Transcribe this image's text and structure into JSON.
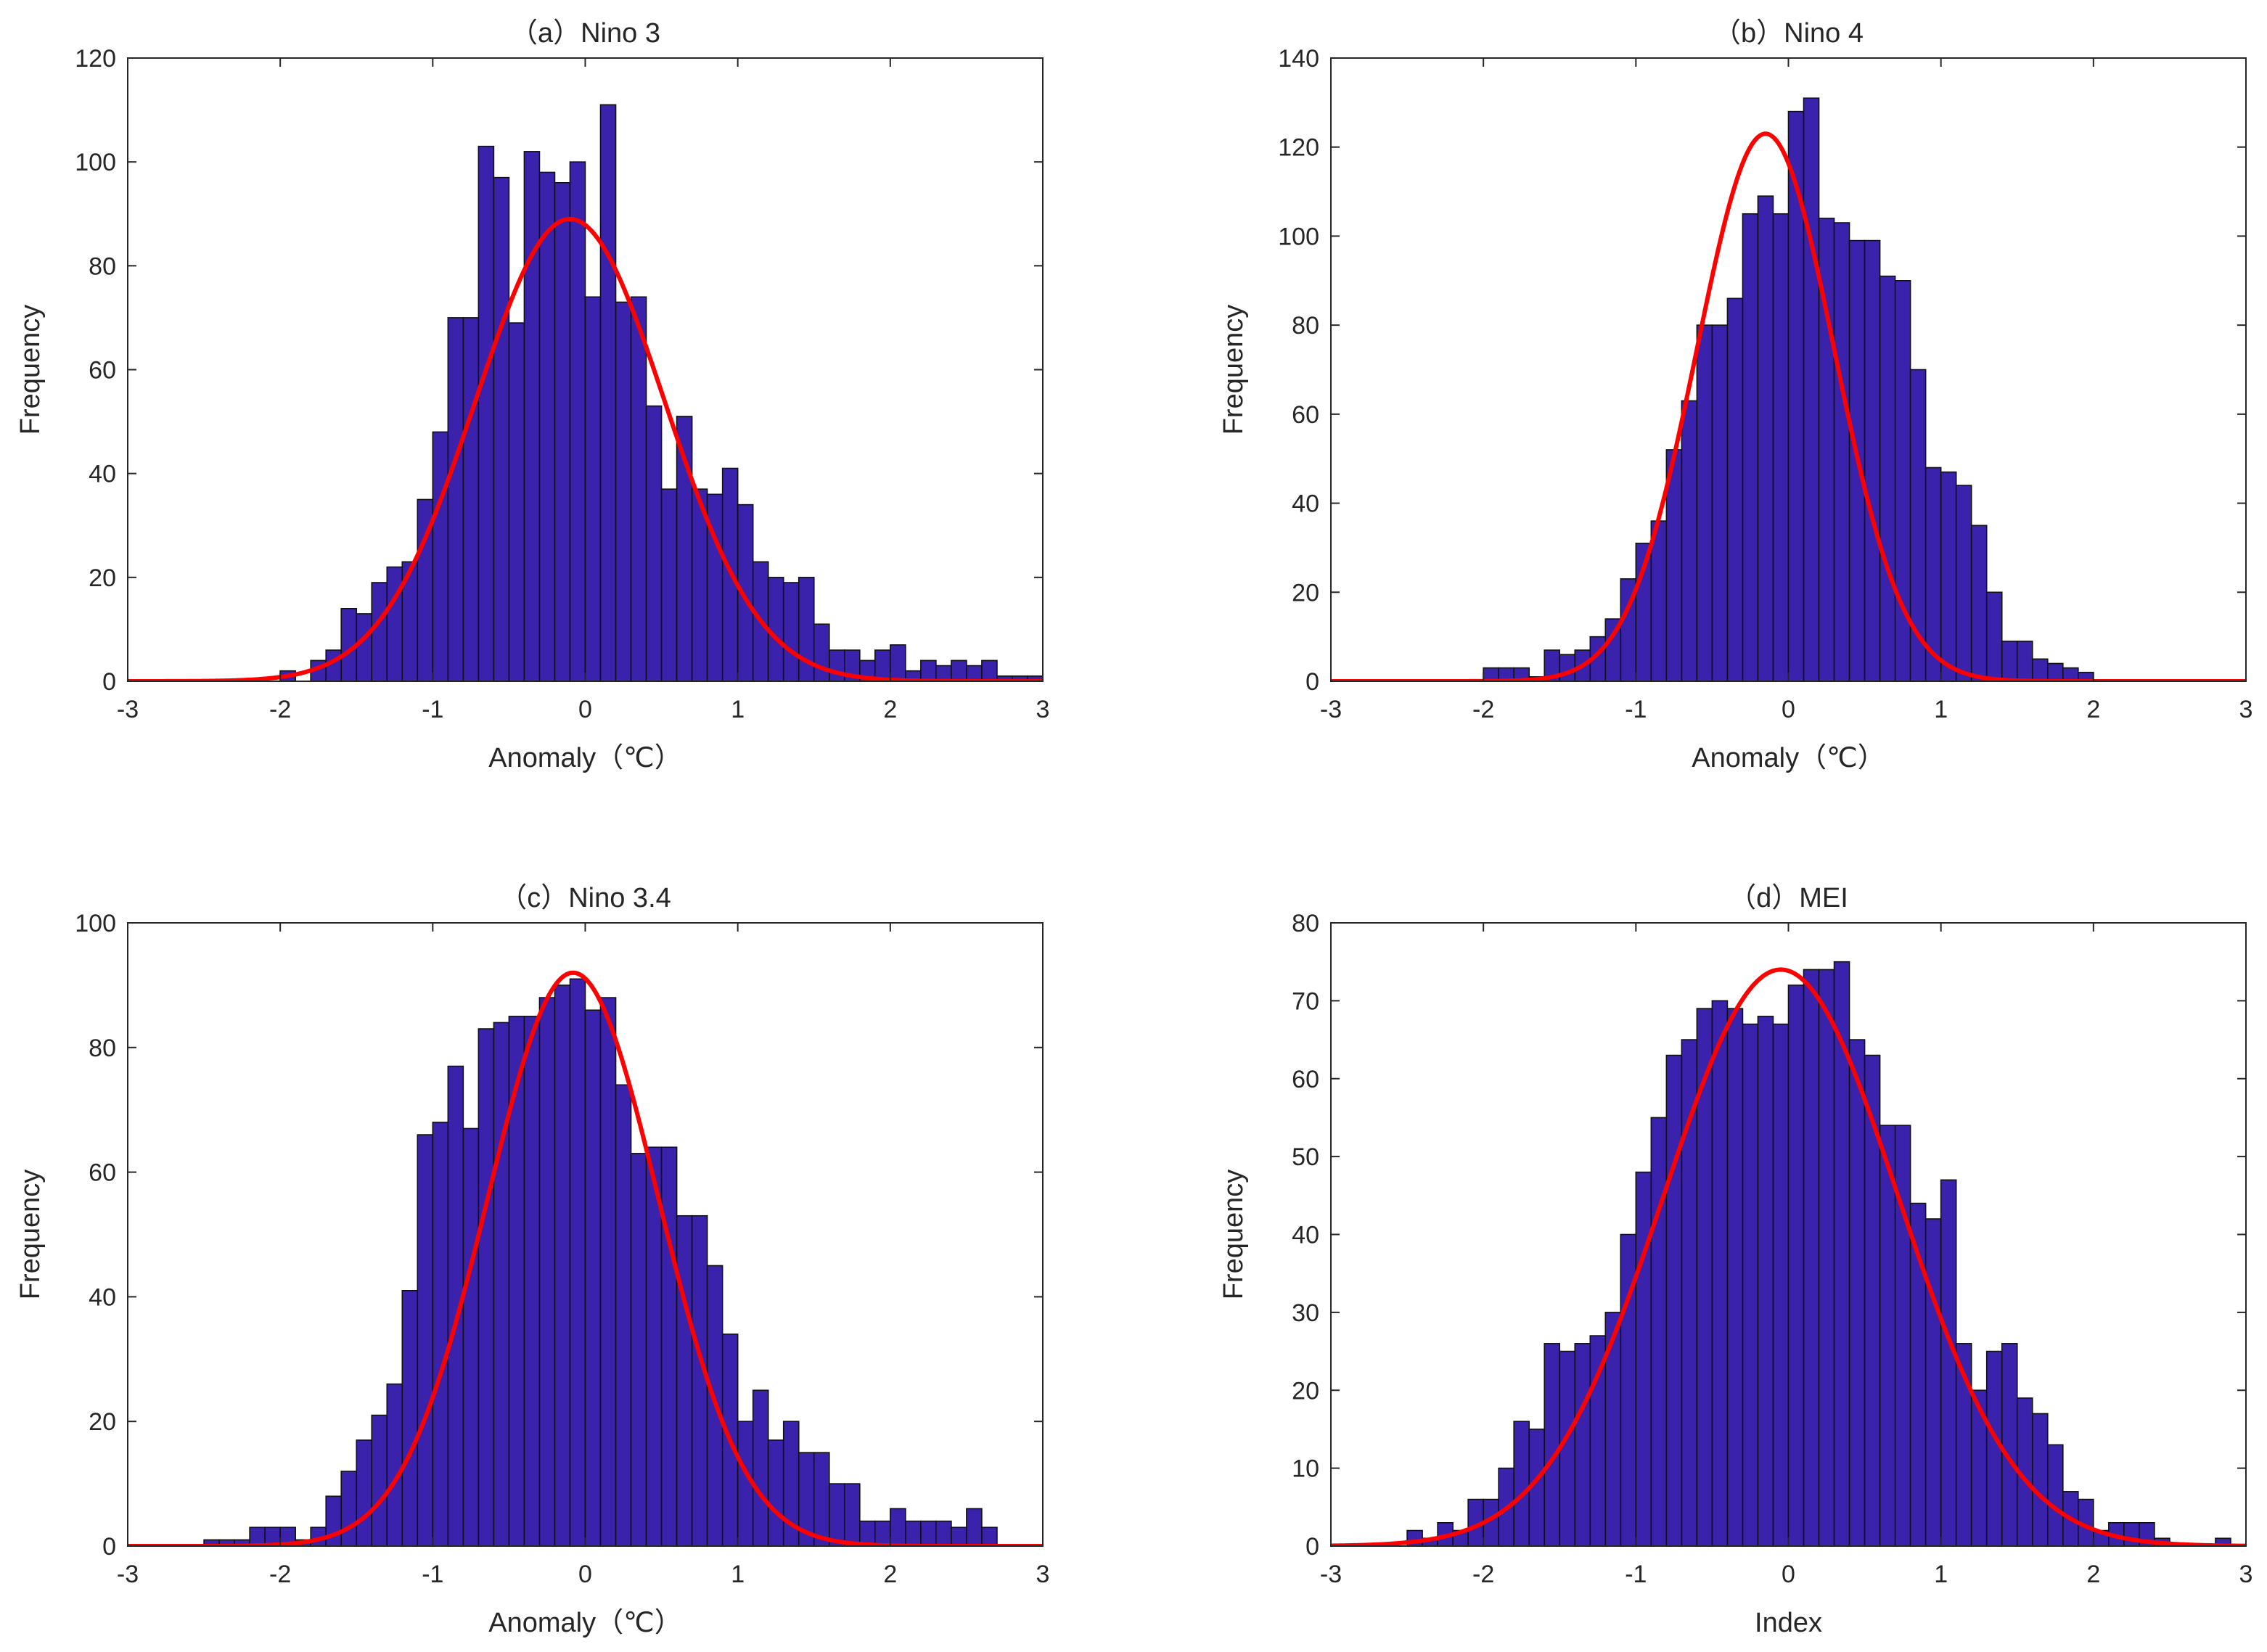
{
  "colors": {
    "bar_fill": "#3a22ad",
    "bar_edge": "#111111",
    "curve": "#ff0000",
    "axis": "#262626"
  },
  "chart_data": [
    {
      "type": "bar",
      "title": "（a）Nino 3",
      "xlabel": "Anomaly（℃）",
      "ylabel": "Frequency",
      "xlim": [
        -3,
        3
      ],
      "ylim": [
        0,
        120
      ],
      "xticks": [
        "-3",
        "-2",
        "-1",
        "0",
        "1",
        "2",
        "3"
      ],
      "yticks": [
        "0",
        "20",
        "40",
        "60",
        "80",
        "100",
        "120"
      ],
      "bin_start": -3,
      "bin_width": 0.1,
      "values": [
        0,
        0,
        0,
        0,
        0,
        0,
        0,
        0,
        0,
        0,
        2,
        0,
        4,
        6,
        14,
        13,
        19,
        22,
        23,
        35,
        48,
        70,
        70,
        103,
        97,
        69,
        102,
        98,
        96,
        100,
        74,
        111,
        73,
        74,
        53,
        37,
        51,
        37,
        36,
        41,
        34,
        23,
        20,
        19,
        20,
        11,
        6,
        6,
        4,
        6,
        7,
        2,
        4,
        3,
        4,
        3,
        4,
        1,
        1,
        1
      ],
      "curve": {
        "series": "normal fit",
        "mean": -0.1,
        "sd": 0.62,
        "peak": 89
      }
    },
    {
      "type": "bar",
      "title": "（b）Nino 4",
      "xlabel": "Anomaly（℃）",
      "ylabel": "Frequency",
      "xlim": [
        -3,
        3
      ],
      "ylim": [
        0,
        140
      ],
      "xticks": [
        "-3",
        "-2",
        "-1",
        "0",
        "1",
        "2",
        "3"
      ],
      "yticks": [
        "0",
        "20",
        "40",
        "60",
        "80",
        "100",
        "120",
        "140"
      ],
      "bin_start": -2.0,
      "bin_width": 0.1,
      "values": [
        3,
        3,
        3,
        1,
        7,
        6,
        7,
        10,
        14,
        23,
        31,
        36,
        52,
        63,
        80,
        80,
        86,
        105,
        109,
        105,
        128,
        131,
        104,
        103,
        99,
        99,
        91,
        90,
        70,
        48,
        47,
        44,
        35,
        20,
        9,
        9,
        5,
        4,
        3,
        2
      ],
      "curve": {
        "series": "normal fit",
        "mean": -0.15,
        "sd": 0.45,
        "peak": 123
      }
    },
    {
      "type": "bar",
      "title": "（c）Nino 3.4",
      "xlabel": "Anomaly（℃）",
      "ylabel": "Frequency",
      "xlim": [
        -3,
        3
      ],
      "ylim": [
        0,
        100
      ],
      "xticks": [
        "-3",
        "-2",
        "-1",
        "0",
        "1",
        "2",
        "3"
      ],
      "yticks": [
        "0",
        "20",
        "40",
        "60",
        "80",
        "100"
      ],
      "bin_start": -2.5,
      "bin_width": 0.1,
      "values": [
        1,
        1,
        1,
        3,
        3,
        3,
        1,
        3,
        8,
        12,
        17,
        21,
        26,
        41,
        66,
        68,
        77,
        67,
        83,
        84,
        85,
        85,
        88,
        90,
        91,
        86,
        88,
        74,
        63,
        64,
        64,
        53,
        53,
        45,
        34,
        20,
        25,
        17,
        20,
        15,
        15,
        10,
        10,
        4,
        4,
        6,
        4,
        4,
        4,
        3,
        6,
        3
      ],
      "curve": {
        "series": "normal fit",
        "mean": -0.08,
        "sd": 0.56,
        "peak": 92
      }
    },
    {
      "type": "bar",
      "title": "（d）MEI",
      "xlabel": "Index",
      "ylabel": "Frequency",
      "xlim": [
        -3,
        3
      ],
      "ylim": [
        0,
        80
      ],
      "xticks": [
        "-3",
        "-2",
        "-1",
        "0",
        "1",
        "2",
        "3"
      ],
      "yticks": [
        "0",
        "10",
        "20",
        "30",
        "40",
        "50",
        "60",
        "70",
        "80"
      ],
      "bin_start": -2.6,
      "bin_width": 0.1,
      "values": [
        0,
        2,
        1,
        3,
        2,
        6,
        6,
        10,
        16,
        15,
        26,
        25,
        26,
        27,
        30,
        40,
        48,
        55,
        63,
        65,
        69,
        70,
        69,
        67,
        68,
        67,
        72,
        74,
        74,
        75,
        65,
        63,
        54,
        54,
        44,
        42,
        47,
        26,
        20,
        25,
        26,
        19,
        17,
        13,
        7,
        6,
        2,
        3,
        3,
        3,
        1,
        0,
        0,
        0,
        1
      ],
      "curve": {
        "series": "normal fit",
        "mean": -0.05,
        "sd": 0.77,
        "peak": 74
      }
    }
  ]
}
